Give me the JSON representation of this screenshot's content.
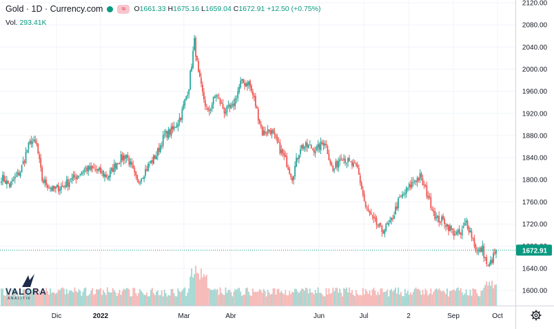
{
  "header": {
    "title": "Gold · 1D · Currency.com",
    "pill_label": "≈",
    "open_label": "O",
    "open": "1661.33",
    "high_label": "H",
    "high": "1675.16",
    "low_label": "L",
    "low": "1659.04",
    "close_label": "C",
    "close": "1672.91",
    "change": "+12.50 (+0.75%)"
  },
  "volume": {
    "label": "Vol.",
    "value": "293.41K"
  },
  "logo": {
    "word": "VALORA",
    "sub": "ANALITIK"
  },
  "icons": {
    "settings": "gear-icon",
    "status": "green-dot-icon"
  },
  "colors": {
    "up": "#26a69a",
    "down": "#ef5350",
    "vol_up": "#9fd5cf",
    "vol_down": "#f5b5b3",
    "last_price": "#089981"
  },
  "chart_data": {
    "type": "candlestick",
    "y_ticks": [
      "2120.00",
      "2080.00",
      "2040.00",
      "2000.00",
      "1960.00",
      "1920.00",
      "1880.00",
      "1840.00",
      "1800.00",
      "1760.00",
      "1720.00",
      "1680.00",
      "1640.00",
      "1600.00"
    ],
    "ylim": [
      1595,
      2125
    ],
    "x_ticks": [
      "Dic",
      "2022",
      "Mar",
      "Abr",
      "Jun",
      "Jul",
      "2",
      "Sep",
      "Oct"
    ],
    "last_price": "1672.91",
    "anchors": [
      {
        "i": 0,
        "p": 1805
      },
      {
        "i": 6,
        "p": 1790
      },
      {
        "i": 14,
        "p": 1815
      },
      {
        "i": 19,
        "p": 1855
      },
      {
        "i": 22,
        "p": 1870
      },
      {
        "i": 26,
        "p": 1862
      },
      {
        "i": 30,
        "p": 1800
      },
      {
        "i": 38,
        "p": 1782
      },
      {
        "i": 46,
        "p": 1790
      },
      {
        "i": 54,
        "p": 1805
      },
      {
        "i": 62,
        "p": 1820
      },
      {
        "i": 70,
        "p": 1818
      },
      {
        "i": 78,
        "p": 1805
      },
      {
        "i": 86,
        "p": 1835
      },
      {
        "i": 92,
        "p": 1845
      },
      {
        "i": 100,
        "p": 1795
      },
      {
        "i": 108,
        "p": 1825
      },
      {
        "i": 114,
        "p": 1845
      },
      {
        "i": 120,
        "p": 1880
      },
      {
        "i": 126,
        "p": 1890
      },
      {
        "i": 132,
        "p": 1915
      },
      {
        "i": 138,
        "p": 1970
      },
      {
        "i": 142,
        "p": 2050
      },
      {
        "i": 145,
        "p": 1990
      },
      {
        "i": 148,
        "p": 1955
      },
      {
        "i": 152,
        "p": 1920
      },
      {
        "i": 158,
        "p": 1955
      },
      {
        "i": 164,
        "p": 1925
      },
      {
        "i": 170,
        "p": 1930
      },
      {
        "i": 176,
        "p": 1975
      },
      {
        "i": 182,
        "p": 1975
      },
      {
        "i": 186,
        "p": 1945
      },
      {
        "i": 192,
        "p": 1885
      },
      {
        "i": 198,
        "p": 1890
      },
      {
        "i": 204,
        "p": 1860
      },
      {
        "i": 210,
        "p": 1830
      },
      {
        "i": 214,
        "p": 1805
      },
      {
        "i": 220,
        "p": 1860
      },
      {
        "i": 226,
        "p": 1860
      },
      {
        "i": 232,
        "p": 1855
      },
      {
        "i": 238,
        "p": 1870
      },
      {
        "i": 244,
        "p": 1815
      },
      {
        "i": 250,
        "p": 1845
      },
      {
        "i": 256,
        "p": 1830
      },
      {
        "i": 262,
        "p": 1820
      },
      {
        "i": 268,
        "p": 1750
      },
      {
        "i": 274,
        "p": 1725
      },
      {
        "i": 280,
        "p": 1708
      },
      {
        "i": 286,
        "p": 1720
      },
      {
        "i": 292,
        "p": 1760
      },
      {
        "i": 298,
        "p": 1780
      },
      {
        "i": 304,
        "p": 1800
      },
      {
        "i": 308,
        "p": 1805
      },
      {
        "i": 314,
        "p": 1770
      },
      {
        "i": 320,
        "p": 1730
      },
      {
        "i": 326,
        "p": 1725
      },
      {
        "i": 332,
        "p": 1705
      },
      {
        "i": 338,
        "p": 1700
      },
      {
        "i": 342,
        "p": 1725
      },
      {
        "i": 346,
        "p": 1700
      },
      {
        "i": 350,
        "p": 1668
      },
      {
        "i": 354,
        "p": 1675
      },
      {
        "i": 358,
        "p": 1640
      },
      {
        "i": 362,
        "p": 1661
      },
      {
        "i": 364,
        "p": 1672.91
      }
    ]
  }
}
